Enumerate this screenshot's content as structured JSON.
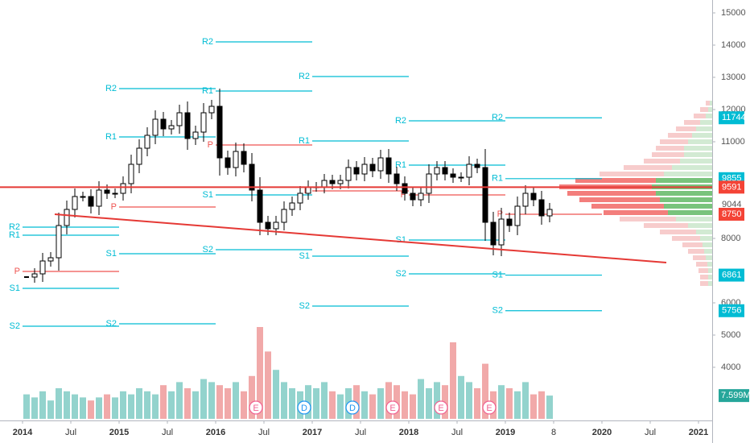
{
  "chart_data": {
    "type": "candlestick",
    "x": [
      "2014-01",
      "2014-02",
      "2014-03",
      "2014-04",
      "2014-05",
      "2014-06",
      "2014-07",
      "2014-08",
      "2014-09",
      "2014-10",
      "2014-11",
      "2014-12",
      "2015-01",
      "2015-02",
      "2015-03",
      "2015-04",
      "2015-05",
      "2015-06",
      "2015-07",
      "2015-08",
      "2015-09",
      "2015-10",
      "2015-11",
      "2015-12",
      "2016-01",
      "2016-02",
      "2016-03",
      "2016-04",
      "2016-05",
      "2016-06",
      "2016-07",
      "2016-08",
      "2016-09",
      "2016-10",
      "2016-11",
      "2016-12",
      "2017-01",
      "2017-02",
      "2017-03",
      "2017-04",
      "2017-05",
      "2017-06",
      "2017-07",
      "2017-08",
      "2017-09",
      "2017-10",
      "2017-11",
      "2017-12",
      "2018-01",
      "2018-02",
      "2018-03",
      "2018-04",
      "2018-05",
      "2018-06",
      "2018-07",
      "2018-08",
      "2018-09",
      "2018-10",
      "2018-11",
      "2018-12",
      "2019-01",
      "2019-02",
      "2019-03",
      "2019-04",
      "2019-05",
      "2019-06"
    ],
    "close": [
      6800,
      6900,
      7300,
      7400,
      8400,
      8900,
      9300,
      9300,
      9000,
      9500,
      9400,
      9400,
      9700,
      10300,
      10800,
      11200,
      11700,
      11400,
      11500,
      11900,
      11100,
      11300,
      11900,
      12100,
      10500,
      10200,
      10700,
      10300,
      9500,
      8500,
      8300,
      8500,
      8900,
      9100,
      9400,
      9600,
      9600,
      9800,
      9700,
      9800,
      10200,
      10000,
      10300,
      10100,
      10500,
      10000,
      9700,
      9400,
      9200,
      9400,
      10000,
      10200,
      10000,
      9900,
      9900,
      10300,
      10200,
      8500,
      7800,
      8600,
      8400,
      9000,
      9400,
      9200,
      8700,
      8900
    ],
    "volume": [
      8,
      7,
      9,
      6,
      10,
      9,
      8,
      7,
      6,
      7,
      8,
      7,
      9,
      8,
      10,
      9,
      8,
      11,
      9,
      12,
      10,
      9,
      13,
      12,
      11,
      10,
      12,
      9,
      14,
      30,
      22,
      16,
      12,
      10,
      9,
      11,
      10,
      12,
      9,
      8,
      10,
      11,
      9,
      8,
      10,
      12,
      11,
      9,
      8,
      13,
      10,
      12,
      11,
      25,
      14,
      12,
      10,
      18,
      9,
      11,
      10,
      9,
      12,
      8,
      9,
      7.599
    ],
    "last_volume_label": "7.599M",
    "ylim": [
      2450,
      15400
    ],
    "yticks": [
      15000,
      14000,
      13000,
      12000,
      11000,
      8000,
      6000,
      5000,
      4000
    ],
    "xticks": [
      {
        "value": "2014-01",
        "label": "2014"
      },
      {
        "value": "2014-07",
        "label": "Jul"
      },
      {
        "value": "2015-01",
        "label": "2015"
      },
      {
        "value": "2015-07",
        "label": "Jul"
      },
      {
        "value": "2016-01",
        "label": "2016"
      },
      {
        "value": "2016-07",
        "label": "Jul"
      },
      {
        "value": "2017-01",
        "label": "2017"
      },
      {
        "value": "2017-07",
        "label": "Jul"
      },
      {
        "value": "2018-01",
        "label": "2018"
      },
      {
        "value": "2018-07",
        "label": "Jul"
      },
      {
        "value": "2019-01",
        "label": "2019"
      },
      {
        "value": "2019-07",
        "label": "8"
      },
      {
        "value": "2020-01",
        "label": "2020"
      },
      {
        "value": "2020-07",
        "label": "Jul"
      },
      {
        "value": "2021-01",
        "label": "2021"
      }
    ],
    "pivot_labels": [
      "R2",
      "R1",
      "P",
      "S1",
      "S2"
    ],
    "pivot_color": "#00bcd4",
    "pivot_p_color": "#ef5350",
    "pivots": [
      {
        "start": "2014-01",
        "end": "2015-01",
        "values": [
          8350,
          8100,
          6975,
          6450,
          5275
        ]
      },
      {
        "start": "2015-01",
        "end": "2016-01",
        "values": [
          12650,
          11150,
          8975,
          7525,
          5350
        ]
      },
      {
        "start": "2016-01",
        "end": "2017-01",
        "values": [
          14100,
          12575,
          10900,
          9350,
          7650
        ]
      },
      {
        "start": "2017-01",
        "end": "2018-01",
        "values": [
          13025,
          11025,
          9475,
          7450,
          5900
        ]
      },
      {
        "start": "2018-01",
        "end": "2019-01",
        "values": [
          11650,
          10275,
          9350,
          7950,
          6900
        ]
      },
      {
        "start": "2019-01",
        "end": "2020-01",
        "values": [
          11744,
          9855,
          8750,
          6861,
          5756
        ]
      }
    ],
    "hline": {
      "value": 9591,
      "color": "#e53935"
    },
    "trendline": {
      "color": "#e53935",
      "points": [
        [
          "2014-05",
          8750
        ],
        [
          "2020-09",
          7250
        ]
      ]
    },
    "last_price": 9044,
    "events": [
      {
        "date": "2016-06",
        "label": "E"
      },
      {
        "date": "2016-12",
        "label": "D"
      },
      {
        "date": "2017-06",
        "label": "D"
      },
      {
        "date": "2017-11",
        "label": "E"
      },
      {
        "date": "2018-05",
        "label": "E"
      },
      {
        "date": "2018-11",
        "label": "E"
      }
    ],
    "volume_profile": {
      "prices": [
        6600,
        6800,
        7000,
        7200,
        7400,
        7600,
        7800,
        8000,
        8200,
        8400,
        8600,
        8800,
        9000,
        9200,
        9400,
        9600,
        9800,
        10000,
        10200,
        10400,
        10600,
        10800,
        11000,
        11200,
        11400,
        11600,
        11800,
        12000,
        12200
      ],
      "up": [
        5,
        5,
        5,
        6,
        8,
        10,
        12,
        15,
        20,
        30,
        45,
        55,
        60,
        65,
        70,
        75,
        70,
        60,
        50,
        40,
        35,
        35,
        30,
        25,
        20,
        15,
        8,
        5,
        3
      ],
      "down": [
        10,
        10,
        12,
        14,
        16,
        20,
        25,
        35,
        45,
        55,
        70,
        80,
        90,
        100,
        110,
        115,
        100,
        80,
        60,
        45,
        40,
        35,
        35,
        30,
        25,
        20,
        15,
        10,
        5
      ]
    }
  }
}
